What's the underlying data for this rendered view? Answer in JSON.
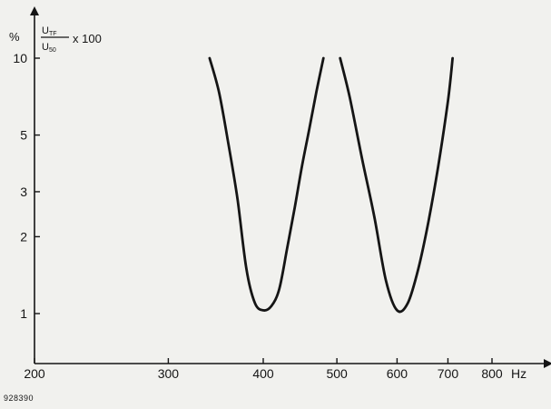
{
  "chart_data": {
    "type": "line",
    "x_scale": "log",
    "y_scale": "log",
    "xlim": [
      200,
      900
    ],
    "ylim": [
      0.75,
      11
    ],
    "x_ticks": [
      {
        "value": 200,
        "label": "200"
      },
      {
        "value": 300,
        "label": "300"
      },
      {
        "value": 400,
        "label": "400"
      },
      {
        "value": 500,
        "label": "500"
      },
      {
        "value": 600,
        "label": "600"
      },
      {
        "value": 700,
        "label": "700"
      },
      {
        "value": 800,
        "label": "800"
      }
    ],
    "x_unit": "Hz",
    "y_ticks": [
      {
        "value": 1,
        "label": "1"
      },
      {
        "value": 2,
        "label": "2"
      },
      {
        "value": 3,
        "label": "3"
      },
      {
        "value": 5,
        "label": "5"
      },
      {
        "value": 10,
        "label": "10"
      }
    ],
    "y_unit": "%",
    "ylabel": {
      "numerator": "U",
      "numerator_sub": "TF",
      "denominator": "U",
      "denominator_sub": "50",
      "multiplier": "x 100"
    },
    "grid": false,
    "series": [
      {
        "x": [
          340,
          350,
          360,
          370,
          380,
          390,
          400,
          410,
          420,
          430,
          440,
          450,
          460,
          470,
          480
        ],
        "y": [
          10,
          7.3,
          4.6,
          2.8,
          1.5,
          1.1,
          1.03,
          1.07,
          1.25,
          1.8,
          2.6,
          3.8,
          5.3,
          7.4,
          10
        ]
      },
      {
        "x": [
          505,
          520,
          540,
          560,
          580,
          600,
          620,
          640,
          660,
          680,
          700,
          710
        ],
        "y": [
          10,
          7.0,
          4.0,
          2.4,
          1.35,
          1.03,
          1.1,
          1.5,
          2.3,
          3.8,
          6.8,
          10
        ]
      }
    ],
    "reference": "928390"
  }
}
